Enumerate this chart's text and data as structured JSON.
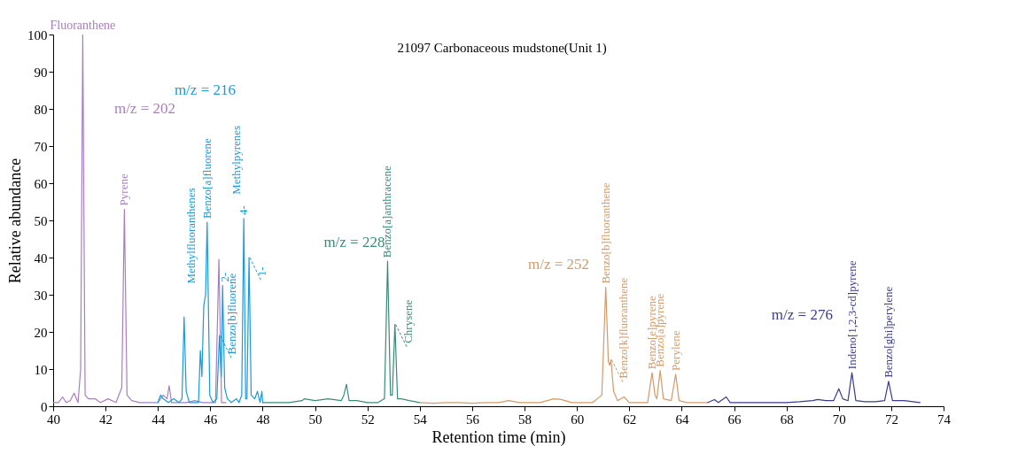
{
  "chart_data": {
    "type": "line",
    "title": "21097 Carbonaceous mudstone(Unit 1)",
    "xlabel": "Retention time (min)",
    "ylabel": "Relative abundance",
    "xlim": [
      40,
      74
    ],
    "xticks": [
      40,
      42,
      44,
      46,
      48,
      50,
      52,
      54,
      56,
      58,
      60,
      62,
      64,
      66,
      68,
      70,
      72,
      74
    ],
    "ylim": [
      0,
      100
    ],
    "yticks": [
      0,
      10,
      20,
      30,
      40,
      50,
      60,
      70,
      80,
      90,
      100
    ],
    "grid": false,
    "legend": false,
    "series": [
      {
        "name": "m/z = 202",
        "color": "#a77fbf",
        "x": [
          40,
          40.2,
          40.36,
          40.5,
          40.65,
          40.8,
          40.95,
          41.05,
          41.13,
          41.22,
          41.35,
          41.6,
          41.8,
          42.1,
          42.4,
          42.62,
          42.72,
          42.82,
          43.0,
          43.3,
          43.7,
          44.0,
          44.2,
          44.35,
          44.43,
          44.52,
          44.8,
          45.1,
          45.4,
          45.7,
          46.0,
          46.2,
          46.33,
          46.43,
          46.6
        ],
        "values": [
          1,
          1,
          2.5,
          1,
          1.5,
          3.5,
          1,
          10,
          100,
          3,
          2,
          2,
          1,
          2,
          1,
          5,
          53,
          3,
          1.5,
          1,
          1,
          1,
          3,
          2,
          5.5,
          1,
          1,
          1,
          1.5,
          1,
          1,
          1,
          39.5,
          1,
          1
        ]
      },
      {
        "name": "m/z = 216",
        "color": "#1c9ad6",
        "x": [
          44,
          44.1,
          44.2,
          44.4,
          44.6,
          44.8,
          44.92,
          45.0,
          45.08,
          45.2,
          45.4,
          45.55,
          45.62,
          45.68,
          45.75,
          45.82,
          45.88,
          45.98,
          46.1,
          46.25,
          46.35,
          46.42,
          46.47,
          46.55,
          46.65,
          46.8,
          47.0,
          47.1,
          47.2,
          47.28,
          47.35,
          47.4,
          47.48,
          47.56,
          47.7,
          47.8,
          47.9,
          47.97,
          48
        ],
        "values": [
          1,
          3,
          2,
          1,
          2,
          1,
          2,
          24,
          4,
          1,
          1,
          1,
          15,
          8,
          27,
          30,
          49.5,
          3,
          1,
          2,
          19,
          8,
          32.5,
          5,
          2,
          1,
          2,
          1,
          3,
          50.5,
          2,
          2,
          40,
          3,
          2,
          4,
          1,
          4,
          1
        ]
      },
      {
        "name": "m/z = 228",
        "color": "#3b8a78",
        "x": [
          48,
          48.5,
          49,
          49.5,
          49.6,
          50,
          50.5,
          51,
          51.1,
          51.2,
          51.3,
          51.6,
          52,
          52.4,
          52.65,
          52.77,
          52.88,
          52.95,
          53.05,
          53.15,
          53.3,
          53.6,
          54
        ],
        "values": [
          1,
          1,
          1,
          1.5,
          2,
          1.5,
          2,
          1.5,
          3,
          5.9,
          1.5,
          1.5,
          1,
          1,
          2,
          39,
          3,
          3,
          22,
          2,
          2,
          1.5,
          1
        ]
      },
      {
        "name": "m/z = 252",
        "color": "#d29b6b",
        "x": [
          54,
          54.5,
          55,
          55.5,
          56,
          56.5,
          57,
          57.4,
          57.8,
          58.2,
          58.6,
          59.1,
          59.4,
          59.8,
          60.2,
          60.6,
          60.95,
          61.1,
          61.2,
          61.25,
          61.3,
          61.4,
          61.55,
          61.8,
          62,
          62.4,
          62.7,
          62.87,
          62.98,
          63.05,
          63.18,
          63.3,
          63.6,
          63.77,
          63.9,
          64.2,
          64.6,
          65
        ],
        "values": [
          1,
          0.8,
          1,
          1,
          0.8,
          1,
          1,
          1.5,
          1,
          1,
          1,
          2,
          1.8,
          1,
          1,
          1,
          3,
          32,
          12,
          11,
          12.5,
          4,
          1.5,
          2.5,
          1,
          1,
          1,
          9,
          3,
          2,
          9.6,
          2,
          1.5,
          8.6,
          1.5,
          1,
          1,
          1
        ]
      },
      {
        "name": "m/z = 276",
        "color": "#393c8e",
        "x": [
          65,
          65.25,
          65.4,
          65.7,
          65.85,
          66.5,
          67,
          67.5,
          68,
          68.5,
          69,
          69.2,
          69.5,
          69.8,
          70.0,
          70.15,
          70.35,
          70.5,
          70.65,
          71,
          71.4,
          71.75,
          71.9,
          72.05,
          72.5,
          73.1
        ],
        "values": [
          1,
          1.8,
          1,
          2.5,
          1,
          1,
          1,
          1,
          1,
          1.2,
          1.5,
          1.8,
          1.5,
          1.5,
          4.7,
          2,
          1.5,
          9,
          1.5,
          1.2,
          1.2,
          1.5,
          6.7,
          1.5,
          1.5,
          1
        ]
      }
    ],
    "annotations": [
      {
        "text": "Fluoranthene",
        "x": 41.13,
        "y": 100
      },
      {
        "text": "Pyrene",
        "x": 42.72,
        "y": 53
      },
      "Methylfluoranthenes",
      {
        "text": "Benzo[a]fluorene",
        "x": 45.88,
        "y": 49.5
      },
      {
        "text": "2-",
        "x": 46.55,
        "y": 32.5
      },
      {
        "text": "Benzo[b]fluorene",
        "x": 46.35,
        "y": 19
      },
      {
        "text": "4-",
        "x": 47.28,
        "y": 50.5
      },
      "Methylpyrenes",
      {
        "text": "1-",
        "x": 47.48,
        "y": 40
      },
      {
        "text": "Benzo[a]anthracene",
        "x": 52.77,
        "y": 39
      },
      {
        "text": "Chrysene",
        "x": 53.05,
        "y": 22
      },
      {
        "text": "Benzo[b]fluoranthene",
        "x": 61.1,
        "y": 32
      },
      {
        "text": "Benzo[k]fluoranthene",
        "x": 61.3,
        "y": 12.5
      },
      {
        "text": "Benzo[e]pyrene",
        "x": 62.87,
        "y": 9
      },
      {
        "text": "Benzo[a]pyrene",
        "x": 63.18,
        "y": 9.6
      },
      {
        "text": "Perylene",
        "x": 63.77,
        "y": 8.6
      },
      {
        "text": "Indeno[1,2,3-cd]pyrene",
        "x": 70.5,
        "y": 9
      },
      {
        "text": "Benzo[ghi]perylene",
        "x": 71.9,
        "y": 6.7
      }
    ]
  }
}
